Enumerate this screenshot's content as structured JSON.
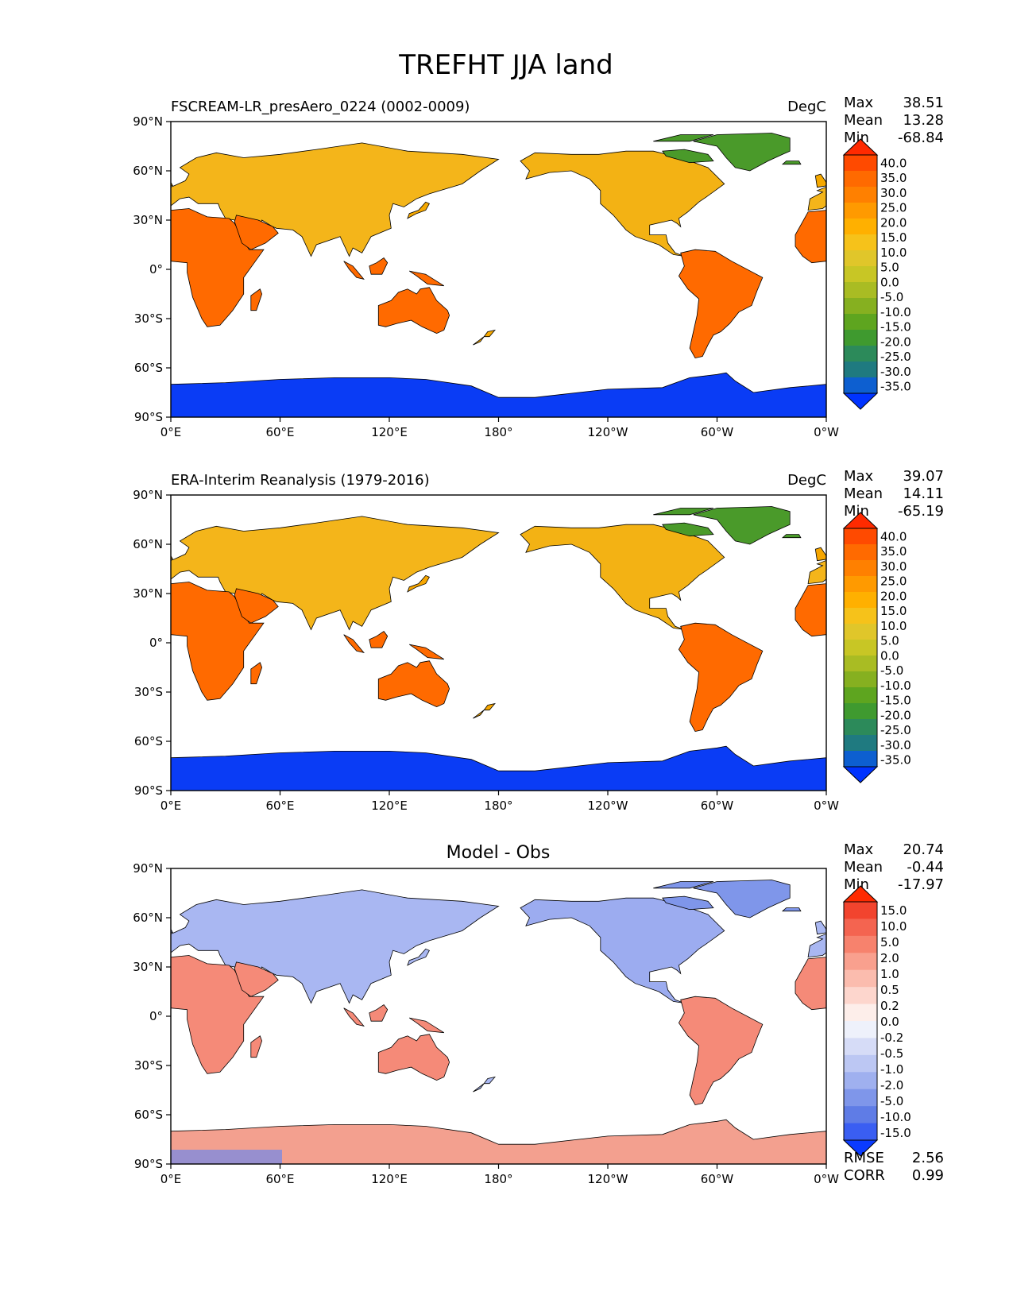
{
  "figure": {
    "title": "TREFHT JJA land",
    "lat_ticks": [
      "90°N",
      "60°N",
      "30°N",
      "0°",
      "30°S",
      "60°S",
      "90°S"
    ],
    "lon_ticks": [
      "0°E",
      "60°E",
      "120°E",
      "180°",
      "120°W",
      "60°W",
      "0°W"
    ]
  },
  "panels": [
    {
      "left_title": "FSCREAM-LR_presAero_0224 (0002-0009)",
      "center_title": "",
      "units": "DegC",
      "stats": [
        {
          "label": "Max",
          "value": "38.51"
        },
        {
          "label": "Mean",
          "value": "13.28"
        },
        {
          "label": "Min",
          "value": "-68.84"
        }
      ],
      "colorbar": {
        "levels": [
          "40.0",
          "35.0",
          "30.0",
          "25.0",
          "20.0",
          "15.0",
          "10.0",
          "5.0",
          "0.0",
          "-5.0",
          "-10.0",
          "-15.0",
          "-20.0",
          "-25.0",
          "-30.0",
          "-35.0"
        ],
        "colors": [
          "#ff2a00",
          "#ff4a00",
          "#ff6a00",
          "#ff8000",
          "#ff9a00",
          "#ffb000",
          "#f6c21a",
          "#e0c62a",
          "#c8c625",
          "#a9bc23",
          "#86b020",
          "#5ea51f",
          "#3f9a2f",
          "#2c8a5a",
          "#1f7a80",
          "#0d5fd0",
          "#0033ff"
        ]
      },
      "footer_stats": []
    },
    {
      "left_title": "ERA-Interim Reanalysis (1979-2016)",
      "center_title": "",
      "units": "DegC",
      "stats": [
        {
          "label": "Max",
          "value": "39.07"
        },
        {
          "label": "Mean",
          "value": "14.11"
        },
        {
          "label": "Min",
          "value": "-65.19"
        }
      ],
      "colorbar": {
        "levels": [
          "40.0",
          "35.0",
          "30.0",
          "25.0",
          "20.0",
          "15.0",
          "10.0",
          "5.0",
          "0.0",
          "-5.0",
          "-10.0",
          "-15.0",
          "-20.0",
          "-25.0",
          "-30.0",
          "-35.0"
        ],
        "colors": [
          "#ff2a00",
          "#ff4a00",
          "#ff6a00",
          "#ff8000",
          "#ff9a00",
          "#ffb000",
          "#f6c21a",
          "#e0c62a",
          "#c8c625",
          "#a9bc23",
          "#86b020",
          "#5ea51f",
          "#3f9a2f",
          "#2c8a5a",
          "#1f7a80",
          "#0d5fd0",
          "#0033ff"
        ]
      },
      "footer_stats": []
    },
    {
      "left_title": "",
      "center_title": "Model - Obs",
      "units": "",
      "stats": [
        {
          "label": "Max",
          "value": "20.74"
        },
        {
          "label": "Mean",
          "value": "-0.44"
        },
        {
          "label": "Min",
          "value": "-17.97"
        }
      ],
      "colorbar": {
        "levels": [
          "15.0",
          "10.0",
          "5.0",
          "2.0",
          "1.0",
          "0.5",
          "0.2",
          "0.0",
          "-0.2",
          "-0.5",
          "-1.0",
          "-2.0",
          "-5.0",
          "-10.0",
          "-15.0"
        ],
        "colors": [
          "#ff2a00",
          "#f2442e",
          "#f46450",
          "#f7826d",
          "#f9a08e",
          "#fbbcae",
          "#fdd6cd",
          "#fdeeea",
          "#eef1fb",
          "#d6dcf7",
          "#bcc7f3",
          "#9fb0ef",
          "#7f96ea",
          "#5f7ce6",
          "#3a5ef2",
          "#0a3bff"
        ]
      },
      "footer_stats": [
        {
          "label": "RMSE",
          "value": "2.56"
        },
        {
          "label": "CORR",
          "value": "0.99"
        }
      ]
    }
  ],
  "map_colors": {
    "antarctica_mean": "#1e73c8",
    "antarctica_diff": "#f3a08f",
    "greenland_mean": "#4a9a2a",
    "greenland_diff": "#7f96ea"
  }
}
